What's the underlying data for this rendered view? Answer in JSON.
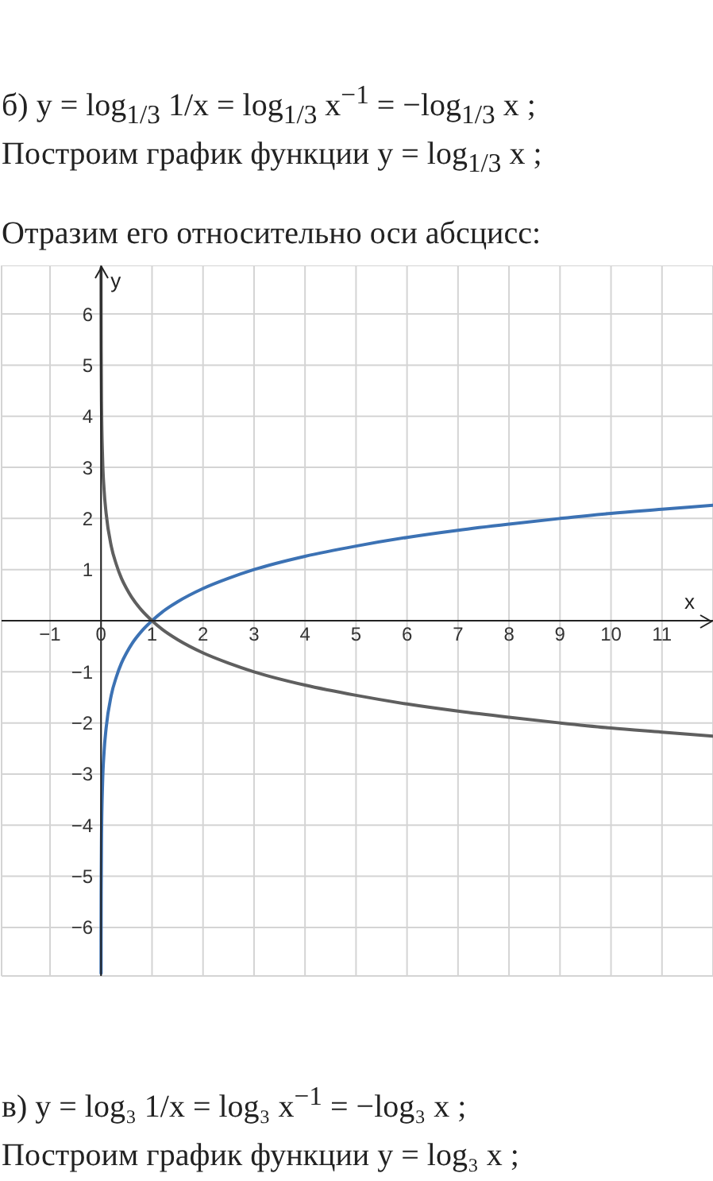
{
  "chart_data": {
    "type": "line",
    "title": "б) y = log$_{1/3}$ 1/x = log$_{1/3}$ x$^{−1}$ = −log$_{1/3}$ x ;",
    "subtitle": "Построим график функции y = log$_{1/3}$ x ;",
    "annotations": [
      "Отразим его относительно оси абсцисс:",
      "в) y = log₃ 1/x = log₃ x$^{−1}$ = −log₃ x ;",
      "Построим график функции y = log₃ x ;"
    ],
    "xlabel": "x",
    "ylabel": "y",
    "x": [
      0.0005,
      0.001,
      0.003,
      0.01,
      0.03,
      0.06,
      0.1,
      0.2,
      0.3,
      0.4,
      0.5,
      0.6,
      0.8,
      1,
      1.2,
      1.5,
      2,
      2.5,
      3,
      4,
      5,
      6,
      7,
      8,
      9,
      10,
      11,
      12
    ],
    "series": [
      {
        "color": "#3c72b4",
        "values": [
          -6.9,
          -6.29,
          -5.29,
          -4.19,
          -3.19,
          -2.56,
          -2.1,
          -1.46,
          -1.1,
          -0.83,
          -0.63,
          -0.46,
          -0.2,
          0,
          0.17,
          0.37,
          0.63,
          0.83,
          1,
          1.26,
          1.46,
          1.63,
          1.77,
          1.89,
          2,
          2.1,
          2.18,
          2.26
        ]
      },
      {
        "color": "#5f5f5f",
        "values": [
          6.9,
          6.29,
          5.29,
          4.19,
          3.19,
          2.56,
          2.1,
          1.46,
          1.1,
          0.83,
          0.63,
          0.46,
          0.2,
          0,
          -0.17,
          -0.37,
          -0.63,
          -0.83,
          -1,
          -1.26,
          -1.46,
          -1.63,
          -1.77,
          -1.89,
          -2,
          -2.1,
          -2.18,
          -2.26
        ]
      }
    ],
    "xlim": [
      -1.95,
      12
    ],
    "ylim": [
      -6.95,
      6.95
    ],
    "xticks": [
      {
        "value": -1,
        "label": "−1"
      },
      0,
      1,
      2,
      3,
      4,
      5,
      6,
      7,
      8,
      9,
      10,
      11
    ],
    "yticks": [
      {
        "value": -6,
        "label": "−6"
      },
      {
        "value": -5,
        "label": "−5"
      },
      {
        "value": -4,
        "label": "−4"
      },
      {
        "value": -3,
        "label": "−3"
      },
      {
        "value": -2,
        "label": "−2"
      },
      {
        "value": -1,
        "label": "−1"
      },
      1,
      2,
      3,
      4,
      5,
      6
    ],
    "grid": true,
    "marker": "none",
    "line_style": "solid"
  }
}
